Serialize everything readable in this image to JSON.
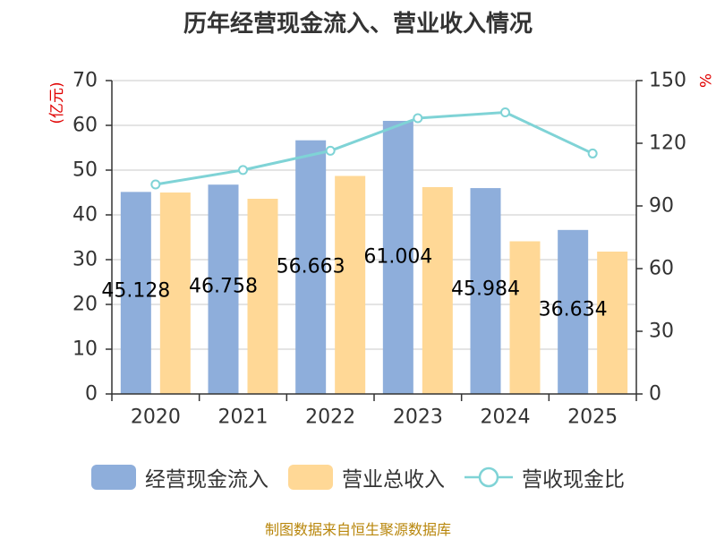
{
  "title": "历年经营现金流入、营业收入情况",
  "source": "制图数据来自恒生聚源数据库",
  "chart_data": {
    "type": "bar",
    "categories": [
      "2020",
      "2021",
      "2022",
      "2023",
      "2024",
      "2025"
    ],
    "series": [
      {
        "name": "经营现金流入",
        "kind": "bar",
        "axis": "left",
        "color": "#8eaedb",
        "values": [
          45.128,
          46.758,
          56.663,
          61.004,
          45.984,
          36.634
        ],
        "labels": [
          "45.128",
          "46.758",
          "56.663",
          "61.004",
          "45.984",
          "36.634"
        ]
      },
      {
        "name": "营业总收入",
        "kind": "bar",
        "axis": "left",
        "color": "#ffd896",
        "values": [
          45.0,
          43.6,
          48.7,
          46.2,
          34.1,
          31.8
        ]
      },
      {
        "name": "营收现金比",
        "kind": "line",
        "axis": "right",
        "color": "#7fd3d6",
        "values": [
          100.3,
          107.2,
          116.4,
          132.0,
          134.8,
          115.1
        ]
      }
    ],
    "y_left": {
      "label": "(亿元)",
      "min": 0,
      "max": 70,
      "ticks": [
        0,
        10,
        20,
        30,
        40,
        50,
        60,
        70
      ]
    },
    "y_right": {
      "label": "%",
      "min": 0,
      "max": 150,
      "ticks": [
        0,
        30,
        60,
        90,
        120,
        150
      ]
    },
    "grid": true,
    "legend_position": "bottom"
  }
}
